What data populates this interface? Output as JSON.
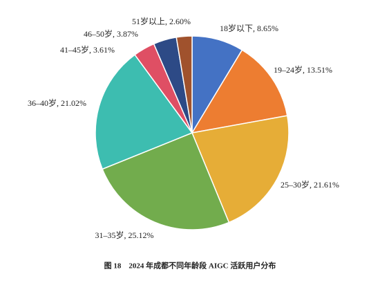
{
  "chart_data": {
    "type": "pie",
    "caption": "图 18　2024 年成都不同年龄段 AIGC 活跃用户分布",
    "values": [
      8.65,
      13.51,
      21.61,
      25.12,
      21.02,
      3.61,
      3.87,
      2.6
    ],
    "value_labels": [
      "18岁以下, 8.65%",
      "19–24岁, 13.51%",
      "25–30岁, 21.61%",
      "31–35岁, 25.12%",
      "36–40岁, 21.02%",
      "41–45岁, 3.61%",
      "46–50岁, 3.87%",
      "51岁以上, 2.60%"
    ],
    "colors": [
      "#4472c4",
      "#ed7d31",
      "#e6ad37",
      "#72ac4d",
      "#3dbdb0",
      "#df4f64",
      "#2d4a86",
      "#a0522d"
    ]
  }
}
